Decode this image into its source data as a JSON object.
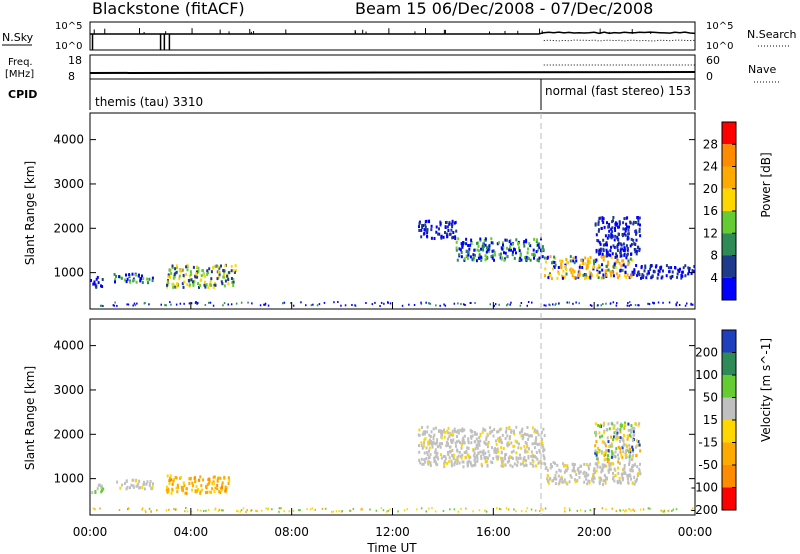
{
  "header": {
    "title": "Blackstone (fitACF)",
    "beam_info": "Beam 15  06/Dec/2008 - 07/Dec/2008"
  },
  "summary": {
    "nsky_label": "N.Sky",
    "nsky_ticks": [
      "10^5",
      "10^0"
    ],
    "nsearch_label": "N.Search",
    "nsearch_ticks": [
      "10^5",
      "10^0"
    ],
    "freq_label_1": "Freq.",
    "freq_label_2": "[MHz]",
    "freq_ticks": [
      "18",
      "8"
    ],
    "nave_label": "Nave",
    "nave_ticks": [
      "60",
      "0"
    ],
    "cpid_label": "CPID",
    "cpid_entries": [
      {
        "text": "themis (tau) 3310",
        "start_hour": 0
      },
      {
        "text": "normal (fast stereo) 153",
        "start_hour": 18
      }
    ]
  },
  "chart_data": [
    {
      "type": "heatmap",
      "panel": "power",
      "ylabel": "Slant Range [km]",
      "xlabel": "",
      "xlim_hours": [
        0,
        24
      ],
      "ylim_km": [
        180,
        4600
      ],
      "yticks": [
        "4000",
        "3000",
        "2000",
        "1000"
      ],
      "colorbar_label": "Power [dB]",
      "colorbar_ticks": [
        "28",
        "24",
        "20",
        "16",
        "12",
        "8",
        "4"
      ],
      "colors": [
        "#ff0000",
        "#ff8c00",
        "#ffaa00",
        "#ffd700",
        "#66cc33",
        "#2e8b57",
        "#1e3a8a",
        "#0000ff"
      ],
      "echo_regions": [
        {
          "t0": 0.0,
          "t1": 0.5,
          "r_min": 700,
          "r_max": 950,
          "level": "low"
        },
        {
          "t0": 0.9,
          "t1": 2.5,
          "r_min": 800,
          "r_max": 1000,
          "level": "mid"
        },
        {
          "t0": 3.0,
          "t1": 5.8,
          "r_min": 700,
          "r_max": 1200,
          "level": "mid-high"
        },
        {
          "t0": 13.0,
          "t1": 14.5,
          "r_min": 1800,
          "r_max": 2200,
          "level": "low"
        },
        {
          "t0": 14.5,
          "t1": 18.0,
          "r_min": 1300,
          "r_max": 1800,
          "level": "mid"
        },
        {
          "t0": 18.0,
          "t1": 21.5,
          "r_min": 900,
          "r_max": 1400,
          "level": "high"
        },
        {
          "t0": 20.0,
          "t1": 21.8,
          "r_min": 1400,
          "r_max": 2300,
          "level": "low"
        },
        {
          "t0": 21.5,
          "t1": 24.0,
          "r_min": 900,
          "r_max": 1200,
          "level": "low"
        }
      ]
    },
    {
      "type": "heatmap",
      "panel": "velocity",
      "ylabel": "Slant Range [km]",
      "xlabel": "Time UT",
      "xlim_hours": [
        0,
        24
      ],
      "ylim_km": [
        180,
        4600
      ],
      "xticks": [
        "00:00",
        "04:00",
        "08:00",
        "12:00",
        "16:00",
        "20:00",
        "00:00"
      ],
      "yticks": [
        "4000",
        "3000",
        "2000",
        "1000"
      ],
      "colorbar_label": "Velocity [m s^-1]",
      "colorbar_ticks": [
        "200",
        "100",
        "50",
        "15",
        "-15",
        "-50",
        "-100",
        "-200"
      ],
      "colors": [
        "#1f3fbf",
        "#2e8b57",
        "#66cc33",
        "#c0c0c0",
        "#ffd700",
        "#ffaa00",
        "#ff8c00",
        "#ff0000"
      ],
      "echo_regions": [
        {
          "t0": 0.0,
          "t1": 0.5,
          "r_min": 700,
          "r_max": 900,
          "level": "positive-slow"
        },
        {
          "t0": 0.9,
          "t1": 2.5,
          "r_min": 800,
          "r_max": 1000,
          "level": "ground-scatter"
        },
        {
          "t0": 3.0,
          "t1": 5.5,
          "r_min": 700,
          "r_max": 1100,
          "level": "negative"
        },
        {
          "t0": 13.0,
          "t1": 18.0,
          "r_min": 1300,
          "r_max": 2200,
          "level": "ground-scatter"
        },
        {
          "t0": 18.0,
          "t1": 21.8,
          "r_min": 900,
          "r_max": 1400,
          "level": "ground-scatter"
        },
        {
          "t0": 20.0,
          "t1": 21.8,
          "r_min": 1400,
          "r_max": 2300,
          "level": "mixed"
        }
      ]
    }
  ]
}
